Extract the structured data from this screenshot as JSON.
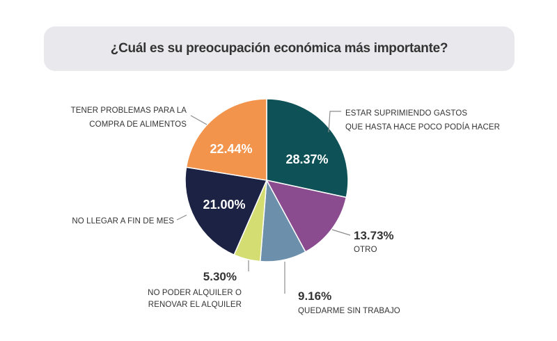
{
  "chart_data": {
    "type": "pie",
    "title": "¿Cuál es su preocupación económica más importante?",
    "start_angle": "top, clockwise",
    "slices": [
      {
        "label": [
          "ESTAR SUPRIMIENDO GASTOS",
          "QUE HASTA HACE POCO PODÍA HACER"
        ],
        "value": 28.37,
        "text": "28.37%",
        "color": "#0e5257"
      },
      {
        "label": [
          "OTRO"
        ],
        "value": 13.73,
        "text": "13.73%",
        "color": "#8a4b8f"
      },
      {
        "label": [
          "QUEDARME SIN TRABAJO"
        ],
        "value": 9.16,
        "text": "9.16%",
        "color": "#6c8fab"
      },
      {
        "label": [
          "NO PODER ALQUILER O",
          "RENOVAR EL ALQUILER"
        ],
        "value": 5.3,
        "text": "5.30%",
        "color": "#d3dd72"
      },
      {
        "label": [
          "NO LLEGAR A FIN DE MES"
        ],
        "value": 21.0,
        "text": "21.00%",
        "color": "#1c2244"
      },
      {
        "label": [
          "TENER PROBLEMAS PARA LA",
          "COMPRA DE ALIMENTOS"
        ],
        "value": 22.44,
        "text": "22.44%",
        "color": "#f3944c"
      }
    ]
  }
}
